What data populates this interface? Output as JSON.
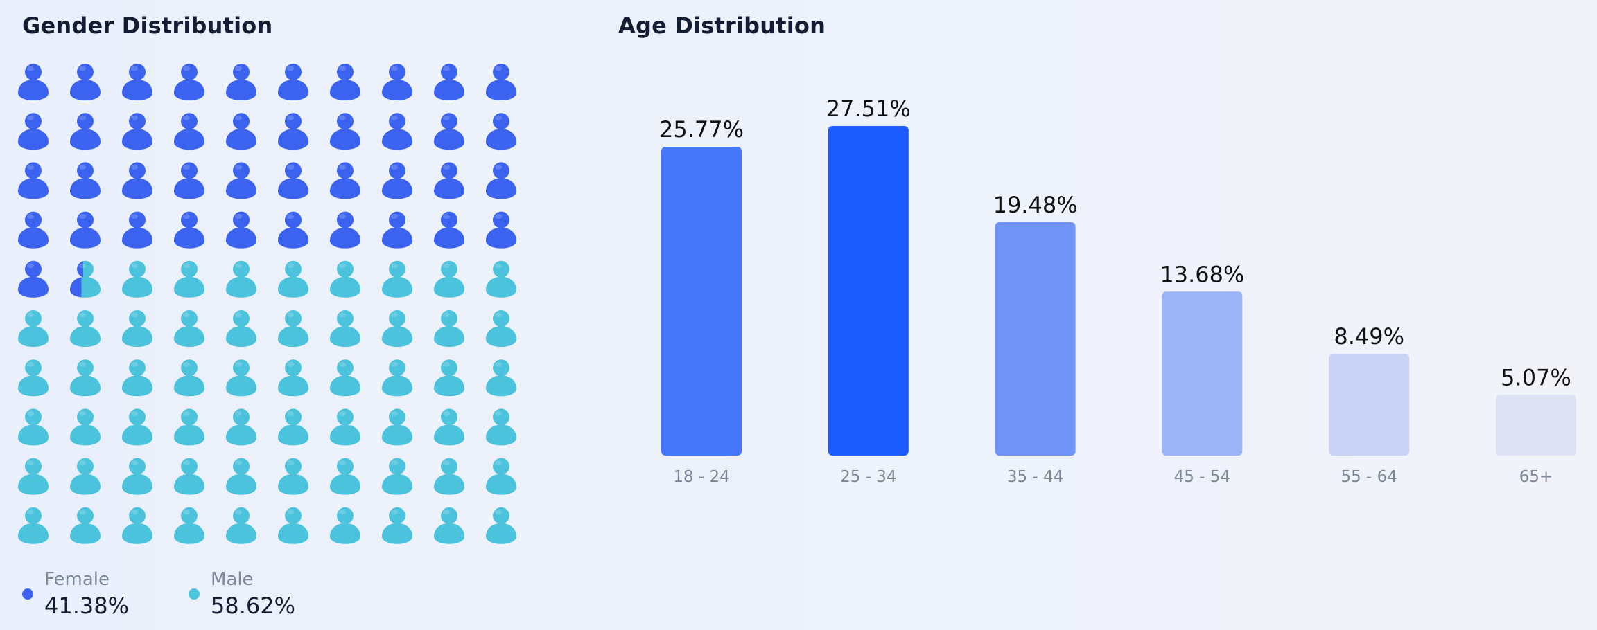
{
  "chart_data": [
    {
      "type": "waffle",
      "title": "Gender Distribution",
      "icon": "person-icon",
      "grid": {
        "rows": 10,
        "cols": 10
      },
      "series": [
        {
          "name": "Female",
          "value": 41.38,
          "label": "41.38%",
          "color": "#3b63f0"
        },
        {
          "name": "Male",
          "value": 58.62,
          "label": "58.62%",
          "color": "#4cc3dc"
        }
      ]
    },
    {
      "type": "bar",
      "title": "Age Distribution",
      "categories": [
        "18 - 24",
        "25 - 34",
        "35 - 44",
        "45 - 54",
        "55 - 64",
        "65+"
      ],
      "values": [
        25.77,
        27.51,
        19.48,
        13.68,
        8.49,
        5.07
      ],
      "value_labels": [
        "25.77%",
        "27.51%",
        "19.48%",
        "13.68%",
        "8.49%",
        "5.07%"
      ],
      "colors": [
        "#4677fb",
        "#1b5bff",
        "#7093f8",
        "#9db3f8",
        "#c8d3f6",
        "#dde3f5"
      ],
      "ylim": [
        0,
        27.51
      ],
      "grid": false
    }
  ]
}
